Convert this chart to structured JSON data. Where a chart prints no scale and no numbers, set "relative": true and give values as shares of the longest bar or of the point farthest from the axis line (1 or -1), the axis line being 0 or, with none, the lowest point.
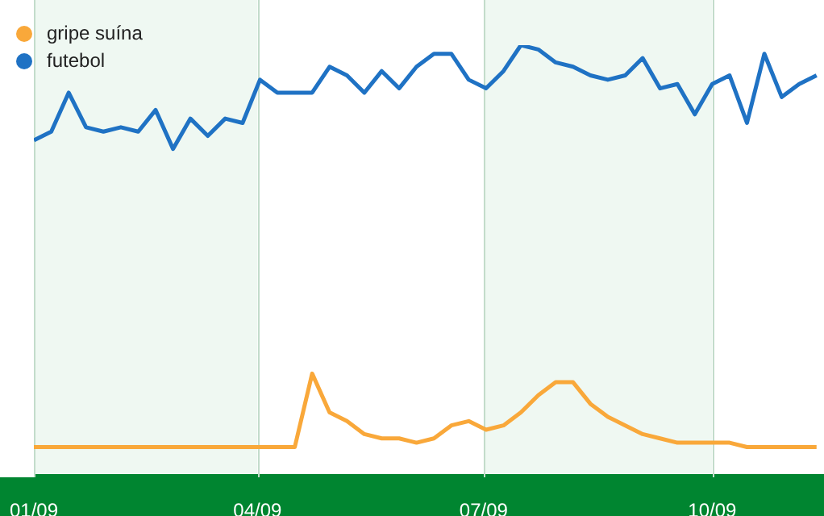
{
  "chart_data": {
    "type": "line",
    "relative": true,
    "x": [
      "2009-01-01",
      "2009-01-08",
      "2009-01-15",
      "2009-01-22",
      "2009-01-29",
      "2009-02-05",
      "2009-02-12",
      "2009-02-19",
      "2009-02-26",
      "2009-03-05",
      "2009-03-12",
      "2009-03-19",
      "2009-03-26",
      "2009-04-02",
      "2009-04-09",
      "2009-04-16",
      "2009-04-23",
      "2009-04-30",
      "2009-05-07",
      "2009-05-14",
      "2009-05-21",
      "2009-05-28",
      "2009-06-04",
      "2009-06-11",
      "2009-06-18",
      "2009-06-25",
      "2009-07-02",
      "2009-07-09",
      "2009-07-16",
      "2009-07-23",
      "2009-07-30",
      "2009-08-06",
      "2009-08-13",
      "2009-08-20",
      "2009-08-27",
      "2009-09-03",
      "2009-09-10",
      "2009-09-17",
      "2009-09-24",
      "2009-10-01",
      "2009-10-08",
      "2009-10-15",
      "2009-10-22",
      "2009-10-29",
      "2009-11-05",
      "2009-11-12"
    ],
    "series": [
      {
        "name": "gripe suína",
        "color": "#f9a83a",
        "values": [
          0.07,
          0.07,
          0.07,
          0.07,
          0.07,
          0.07,
          0.07,
          0.07,
          0.07,
          0.07,
          0.07,
          0.07,
          0.07,
          0.07,
          0.07,
          0.07,
          0.24,
          0.15,
          0.13,
          0.1,
          0.09,
          0.09,
          0.08,
          0.09,
          0.12,
          0.13,
          0.11,
          0.12,
          0.15,
          0.19,
          0.22,
          0.22,
          0.17,
          0.14,
          0.12,
          0.1,
          0.09,
          0.08,
          0.08,
          0.08,
          0.08,
          0.07,
          0.07,
          0.07,
          0.07,
          0.07
        ]
      },
      {
        "name": "futebol",
        "color": "#1f72c4",
        "values": [
          0.78,
          0.8,
          0.89,
          0.81,
          0.8,
          0.81,
          0.8,
          0.85,
          0.76,
          0.83,
          0.79,
          0.83,
          0.82,
          0.92,
          0.89,
          0.89,
          0.89,
          0.95,
          0.93,
          0.89,
          0.94,
          0.9,
          0.95,
          0.98,
          0.98,
          0.92,
          0.9,
          0.94,
          1,
          0.99,
          0.96,
          0.95,
          0.93,
          0.92,
          0.93,
          0.97,
          0.9,
          0.91,
          0.84,
          0.91,
          0.93,
          0.82,
          0.98,
          0.88,
          0.91,
          0.93
        ]
      }
    ],
    "xlim": [
      "2009-01-01",
      "2009-11-15"
    ],
    "xticks": [
      {
        "value": "2009-01-01",
        "label": "01/09"
      },
      {
        "value": "2009-04-01",
        "label": "04/09"
      },
      {
        "value": "2009-07-01",
        "label": "07/09"
      },
      {
        "value": "2009-10-01",
        "label": "10/09"
      }
    ],
    "bands": [
      {
        "axis": "x",
        "from": "2009-01-01",
        "to": "2009-04-01",
        "color": "#eff8f2"
      },
      {
        "axis": "x",
        "from": "2009-07-01",
        "to": "2009-10-01",
        "color": "#eff8f2"
      }
    ],
    "grid": "x",
    "legend": "top left",
    "marker": "none",
    "line_style": "solid"
  }
}
